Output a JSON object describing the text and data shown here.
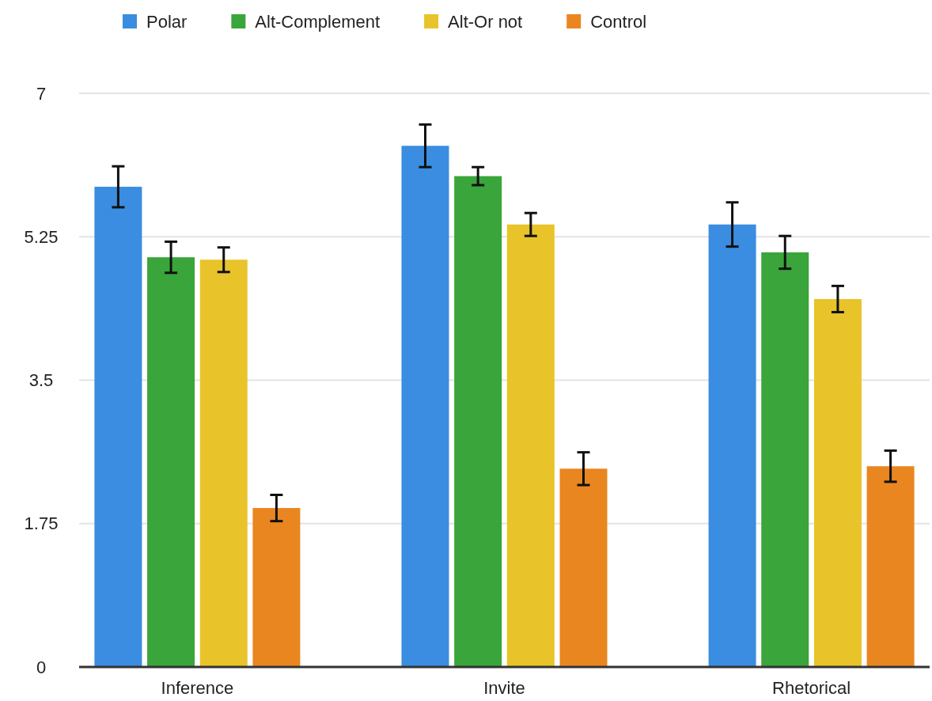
{
  "chart_data": {
    "type": "bar",
    "categories": [
      "Inference",
      "Invite",
      "Rhetorical"
    ],
    "series": [
      {
        "name": "Polar",
        "color": "#3a8de0",
        "values": [
          5.86,
          6.36,
          5.4
        ],
        "errors": [
          0.25,
          0.26,
          0.27
        ]
      },
      {
        "name": "Alt-Complement",
        "color": "#3aa53a",
        "values": [
          5.0,
          5.99,
          5.06
        ],
        "errors": [
          0.19,
          0.11,
          0.2
        ]
      },
      {
        "name": "Alt-Or not",
        "color": "#e8c42a",
        "values": [
          4.97,
          5.4,
          4.49
        ],
        "errors": [
          0.15,
          0.14,
          0.16
        ]
      },
      {
        "name": "Control",
        "color": "#ea8620",
        "values": [
          1.94,
          2.42,
          2.45
        ],
        "errors": [
          0.16,
          0.2,
          0.19
        ]
      }
    ],
    "ylim": [
      0,
      7
    ],
    "yticks": [
      0,
      1.75,
      3.5,
      5.25,
      7
    ],
    "grid": "y",
    "legend": "top"
  }
}
